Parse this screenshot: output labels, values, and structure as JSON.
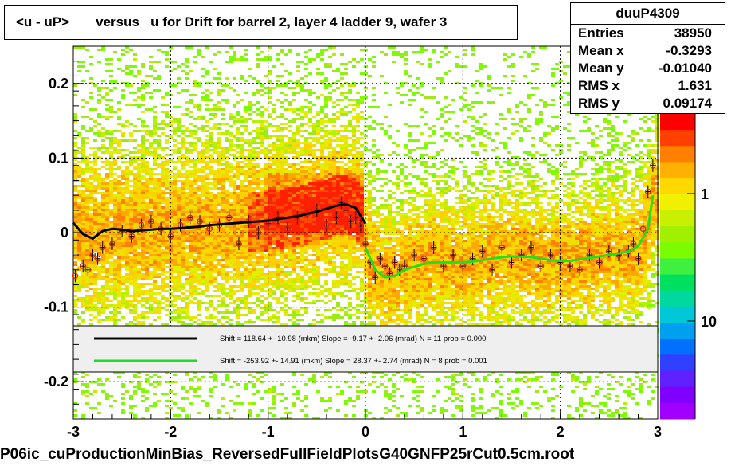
{
  "title": "<u - uP>       versus   u for Drift for barrel 2, layer 4 ladder 9, wafer 3",
  "stats": {
    "name": "duuP4309",
    "rows": [
      {
        "label": "Entries",
        "value": "38950"
      },
      {
        "label": "Mean x",
        "value": "-0.3293"
      },
      {
        "label": "Mean y",
        "value": "-0.01040"
      },
      {
        "label": "RMS x",
        "value": "1.631"
      },
      {
        "label": "RMS y",
        "value": "0.09174"
      }
    ]
  },
  "footer": "P06ic_cuProductionMinBias_ReversedFullFieldPlotsG40GNFP25rCut0.5cm.root",
  "colors": {
    "fit1": "#000000",
    "fit2": "#22dd22",
    "marker": "#cc2222"
  },
  "chart_data": {
    "type": "heatmap",
    "xlim": [
      -3,
      3
    ],
    "ylim": [
      -0.25,
      0.25
    ],
    "x_ticks": [
      "-3",
      "-2",
      "-1",
      "0",
      "1",
      "2",
      "3"
    ],
    "y_ticks": [
      "-0.2",
      "-0.1",
      "0",
      "0.1",
      "0.2"
    ],
    "colorbar_ticks": [
      "1",
      "10"
    ],
    "grid": true,
    "legend": {
      "placement": "lower-center",
      "entries": [
        {
          "text": "Shift =   118.64 +- 10.98 (mkm) Slope =    -9.17 +- 2.06 (mrad)  N = 11 prob = 0.000",
          "color": "#000000"
        },
        {
          "text": "Shift =  -253.92 +- 14.91 (mkm) Slope =    28.37 +- 2.74 (mrad)  N = 8 prob = 0.001",
          "color": "#22dd22"
        }
      ]
    },
    "series": [
      {
        "x": [
          -3.0,
          -2.9,
          -2.8,
          -2.7,
          -2.6,
          -2.5,
          -2.4,
          -2.3,
          -2.2,
          -2.1,
          -2.0,
          -1.9,
          -1.8,
          -1.7,
          -1.6,
          -1.5,
          -1.4,
          -1.3,
          -1.2,
          -1.1,
          -1.0,
          -0.9,
          -0.8,
          -0.7,
          -0.6,
          -0.5,
          -0.4,
          -0.3,
          -0.2,
          -0.1,
          0.0
        ],
        "y": [
          0.013,
          -0.002,
          -0.008,
          0.002,
          0.005,
          0.004,
          0.002,
          0.003,
          0.004,
          0.005,
          0.005,
          0.006,
          0.007,
          0.008,
          0.01,
          0.011,
          0.012,
          0.013,
          0.014,
          0.015,
          0.016,
          0.018,
          0.02,
          0.022,
          0.025,
          0.028,
          0.032,
          0.036,
          0.038,
          0.033,
          0.012
        ]
      },
      {
        "x": [
          0.0,
          0.1,
          0.2,
          0.3,
          0.4,
          0.5,
          0.6,
          0.7,
          0.8,
          0.9,
          1.0,
          1.1,
          1.2,
          1.3,
          1.4,
          1.5,
          1.6,
          1.7,
          1.8,
          1.9,
          2.0,
          2.1,
          2.2,
          2.3,
          2.4,
          2.5,
          2.6,
          2.7,
          2.8,
          2.9,
          2.95
        ],
        "y": [
          -0.02,
          -0.05,
          -0.06,
          -0.058,
          -0.05,
          -0.046,
          -0.042,
          -0.04,
          -0.04,
          -0.04,
          -0.04,
          -0.039,
          -0.037,
          -0.035,
          -0.033,
          -0.032,
          -0.032,
          -0.033,
          -0.035,
          -0.037,
          -0.038,
          -0.038,
          -0.036,
          -0.034,
          -0.032,
          -0.03,
          -0.028,
          -0.025,
          -0.018,
          0.005,
          0.05
        ]
      },
      {
        "x": [
          -2.98,
          -2.9,
          -2.85,
          -2.8,
          -2.75,
          -2.7,
          -2.6,
          -2.5,
          -2.4,
          -2.3,
          -2.2,
          -2.1,
          -2.0,
          -1.9,
          -1.8,
          -1.7,
          -1.6,
          -1.5,
          -1.4,
          -1.3,
          -1.2,
          -1.1,
          -1.0,
          -0.9,
          -0.8,
          -0.7,
          -0.6,
          -0.5,
          -0.4,
          -0.3,
          -0.25,
          -0.2,
          -0.15,
          -0.1,
          -0.05,
          0.0,
          0.05,
          0.1,
          0.15,
          0.2,
          0.25,
          0.3,
          0.35,
          0.4,
          0.5,
          0.6,
          0.7,
          0.8,
          0.9,
          1.0,
          1.1,
          1.2,
          1.3,
          1.4,
          1.5,
          1.6,
          1.7,
          1.8,
          1.9,
          2.0,
          2.1,
          2.2,
          2.3,
          2.4,
          2.5,
          2.6,
          2.7,
          2.75,
          2.8,
          2.85,
          2.9,
          2.95
        ],
        "y": [
          -0.058,
          -0.045,
          -0.05,
          -0.03,
          -0.035,
          -0.02,
          -0.015,
          0.002,
          -0.005,
          0.01,
          0.015,
          0.005,
          -0.005,
          0.01,
          0.02,
          0.015,
          0.005,
          0.01,
          0.02,
          -0.015,
          0.015,
          0.0,
          0.012,
          0.02,
          0.005,
          0.02,
          0.025,
          0.03,
          0.01,
          0.02,
          0.04,
          0.03,
          0.015,
          0.02,
          0.01,
          -0.015,
          -0.04,
          -0.06,
          -0.035,
          -0.045,
          -0.055,
          -0.04,
          -0.05,
          -0.045,
          -0.03,
          -0.035,
          -0.02,
          -0.045,
          -0.03,
          -0.045,
          -0.035,
          -0.025,
          -0.05,
          -0.02,
          -0.04,
          -0.03,
          -0.02,
          -0.045,
          -0.03,
          -0.04,
          -0.045,
          -0.05,
          -0.03,
          -0.04,
          -0.025,
          -0.03,
          -0.025,
          -0.015,
          -0.035,
          0.005,
          0.055,
          0.09
        ]
      }
    ]
  }
}
